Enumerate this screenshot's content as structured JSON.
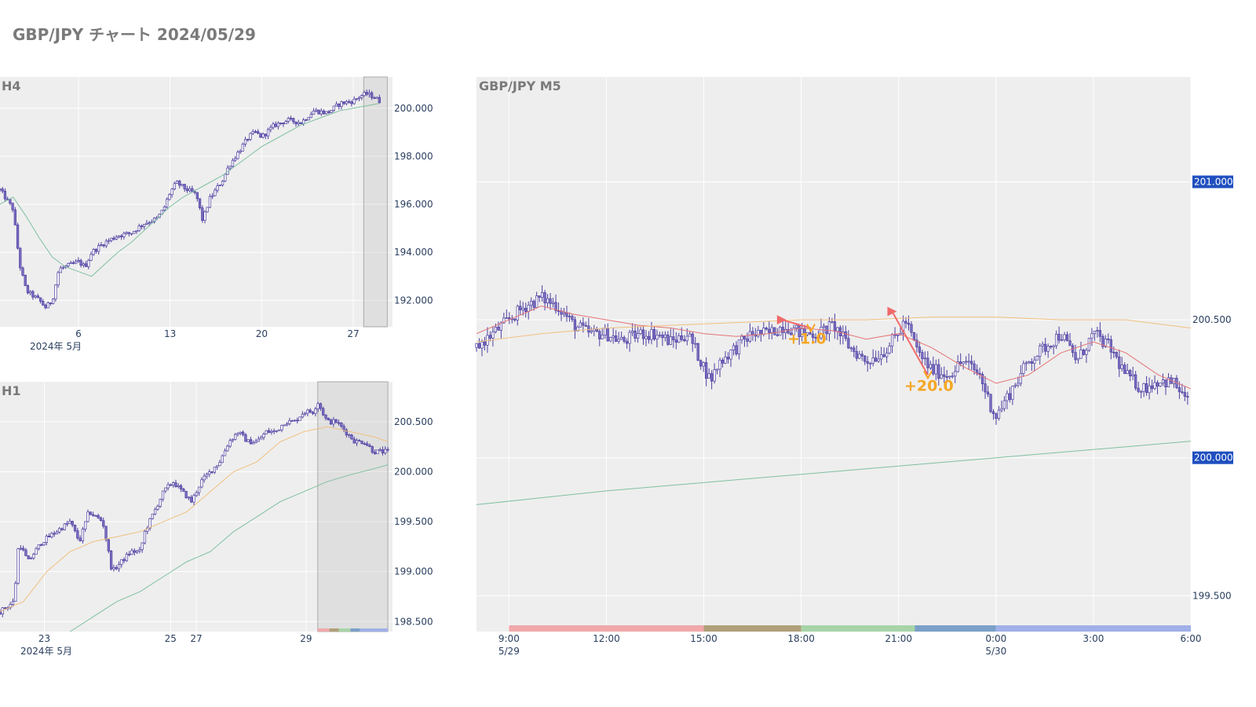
{
  "title": "GBP/JPY チャート 2024/05/29",
  "colors": {
    "plot_bg": "#eeeeee",
    "grid": "#ffffff",
    "candle": "#7b6fc2",
    "candle_dark": "#4d3fa0",
    "ma_short": "#e57373",
    "ma_mid": "#f0c080",
    "ma_long": "#7fc0a0",
    "badge": "#1f4fbf",
    "annotation": "#f5a623",
    "trade_line": "#f06a6a"
  },
  "chart_data": [
    {
      "id": "h4",
      "type": "candlestick",
      "title": "H4",
      "x_ticks": [
        "6",
        "13",
        "20",
        "27"
      ],
      "x_sublabel": "2024年 5月",
      "y_ticks": [
        "200.000",
        "198.000",
        "196.000",
        "194.000",
        "192.000"
      ],
      "ylim": [
        190.9,
        201.3
      ],
      "x_range_days": [
        0.0,
        30.0
      ],
      "x_tick_days": [
        6,
        13,
        20,
        27
      ],
      "series": [
        {
          "kind": "close_path",
          "points": [
            [
              0,
              196.6
            ],
            [
              1,
              195.8
            ],
            [
              1.5,
              193.5
            ],
            [
              2,
              192.4
            ],
            [
              3,
              192.0
            ],
            [
              3.5,
              191.7
            ],
            [
              4,
              192.0
            ],
            [
              4.5,
              193.3
            ],
            [
              5,
              193.4
            ],
            [
              6,
              193.6
            ],
            [
              6.5,
              193.4
            ],
            [
              7,
              194.0
            ],
            [
              8,
              194.4
            ],
            [
              9,
              194.7
            ],
            [
              10,
              194.8
            ],
            [
              11,
              195.2
            ],
            [
              12,
              195.4
            ],
            [
              12.5,
              195.8
            ],
            [
              13,
              196.5
            ],
            [
              13.5,
              196.9
            ],
            [
              14,
              196.7
            ],
            [
              15,
              196.4
            ],
            [
              15.5,
              195.3
            ],
            [
              16,
              196.2
            ],
            [
              16.5,
              196.6
            ],
            [
              17,
              197.0
            ],
            [
              17.5,
              197.6
            ],
            [
              18,
              198.0
            ],
            [
              19,
              198.8
            ],
            [
              19.5,
              199.0
            ],
            [
              20,
              198.8
            ],
            [
              21,
              199.3
            ],
            [
              22,
              199.5
            ],
            [
              23,
              199.4
            ],
            [
              24,
              199.9
            ],
            [
              25,
              199.8
            ],
            [
              26,
              200.2
            ],
            [
              27,
              200.3
            ],
            [
              27.5,
              200.5
            ],
            [
              28,
              200.6
            ],
            [
              28.5,
              200.5
            ],
            [
              29,
              200.3
            ]
          ]
        },
        {
          "kind": "ma",
          "color": "ma_long",
          "points": [
            [
              0,
              196.0
            ],
            [
              1,
              196.3
            ],
            [
              2,
              195.5
            ],
            [
              3,
              194.6
            ],
            [
              4,
              193.8
            ],
            [
              5,
              193.4
            ],
            [
              6,
              193.2
            ],
            [
              7,
              193.0
            ],
            [
              8,
              193.5
            ],
            [
              9,
              194.0
            ],
            [
              10,
              194.4
            ],
            [
              11,
              194.9
            ],
            [
              12,
              195.4
            ],
            [
              13,
              195.9
            ],
            [
              14,
              196.3
            ],
            [
              15,
              196.6
            ],
            [
              16,
              196.9
            ],
            [
              17,
              197.2
            ],
            [
              18,
              197.6
            ],
            [
              19,
              198.0
            ],
            [
              20,
              198.4
            ],
            [
              21,
              198.7
            ],
            [
              22,
              199.0
            ],
            [
              23,
              199.3
            ],
            [
              24,
              199.5
            ],
            [
              25,
              199.7
            ],
            [
              26,
              199.9
            ],
            [
              27,
              200.0
            ],
            [
              28,
              200.1
            ],
            [
              29,
              200.2
            ]
          ]
        }
      ],
      "highlight_days": [
        27.8,
        29.6
      ]
    },
    {
      "id": "h1",
      "type": "candlestick",
      "title": "H1",
      "x_ticks": [
        "23",
        "25",
        "27",
        "29"
      ],
      "x_sublabel": "2024年 5月",
      "y_ticks": [
        "200.500",
        "200.000",
        "199.500",
        "199.000",
        "198.500"
      ],
      "ylim": [
        198.4,
        200.9
      ],
      "x_range_hours": [
        0.0,
        168.0
      ],
      "x_tick_hours": [
        19,
        73,
        84,
        131
      ],
      "series": [
        {
          "kind": "close_path",
          "points": [
            [
              0,
              198.6
            ],
            [
              6,
              198.7
            ],
            [
              8,
              199.3
            ],
            [
              12,
              199.1
            ],
            [
              18,
              199.3
            ],
            [
              24,
              199.4
            ],
            [
              30,
              199.5
            ],
            [
              34,
              199.3
            ],
            [
              38,
              199.6
            ],
            [
              44,
              199.5
            ],
            [
              48,
              199.0
            ],
            [
              52,
              199.1
            ],
            [
              56,
              199.2
            ],
            [
              60,
              199.2
            ],
            [
              62,
              199.4
            ],
            [
              66,
              199.6
            ],
            [
              70,
              199.8
            ],
            [
              74,
              199.9
            ],
            [
              78,
              199.8
            ],
            [
              82,
              199.7
            ],
            [
              86,
              199.9
            ],
            [
              90,
              200.0
            ],
            [
              94,
              200.1
            ],
            [
              98,
              200.3
            ],
            [
              102,
              200.4
            ],
            [
              106,
              200.3
            ],
            [
              110,
              200.3
            ],
            [
              114,
              200.4
            ],
            [
              118,
              200.4
            ],
            [
              122,
              200.5
            ],
            [
              126,
              200.5
            ],
            [
              130,
              200.6
            ],
            [
              134,
              200.6
            ],
            [
              136,
              200.7
            ],
            [
              140,
              200.5
            ],
            [
              144,
              200.5
            ],
            [
              148,
              200.4
            ],
            [
              152,
              200.3
            ],
            [
              156,
              200.3
            ],
            [
              160,
              200.2
            ],
            [
              164,
              200.2
            ],
            [
              166,
              200.2
            ]
          ]
        },
        {
          "kind": "ma",
          "color": "ma_mid",
          "points": [
            [
              0,
              198.6
            ],
            [
              10,
              198.7
            ],
            [
              20,
              199.0
            ],
            [
              30,
              199.2
            ],
            [
              40,
              199.3
            ],
            [
              50,
              199.35
            ],
            [
              60,
              199.4
            ],
            [
              70,
              199.5
            ],
            [
              80,
              199.6
            ],
            [
              90,
              199.8
            ],
            [
              100,
              200.0
            ],
            [
              110,
              200.1
            ],
            [
              120,
              200.3
            ],
            [
              130,
              200.4
            ],
            [
              140,
              200.45
            ],
            [
              150,
              200.4
            ],
            [
              160,
              200.35
            ],
            [
              166,
              200.3
            ]
          ]
        },
        {
          "kind": "ma",
          "color": "ma_long",
          "points": [
            [
              30,
              198.4
            ],
            [
              40,
              198.55
            ],
            [
              50,
              198.7
            ],
            [
              60,
              198.8
            ],
            [
              70,
              198.95
            ],
            [
              80,
              199.1
            ],
            [
              90,
              199.2
            ],
            [
              100,
              199.4
            ],
            [
              110,
              199.55
            ],
            [
              120,
              199.7
            ],
            [
              130,
              199.8
            ],
            [
              140,
              199.9
            ],
            [
              150,
              199.97
            ],
            [
              160,
              200.03
            ],
            [
              166,
              200.07
            ]
          ]
        }
      ],
      "highlight_hours": [
        136,
        166
      ]
    },
    {
      "id": "m5",
      "type": "candlestick",
      "title": "GBP/JPY M5",
      "x_ticks": [
        "9:00",
        "12:00",
        "15:00",
        "18:00",
        "21:00",
        "0:00",
        "3:00",
        "6:00"
      ],
      "x_date_labels": [
        "5/29",
        "5/30"
      ],
      "y_ticks": [
        "201.000",
        "200.500",
        "200.000",
        "199.500"
      ],
      "y_badges": [
        "201.000",
        "200.000"
      ],
      "ylim": [
        199.37,
        201.38
      ],
      "x_range_hours": [
        8.0,
        30.0
      ],
      "series": [
        {
          "kind": "close_path",
          "points": [
            [
              8,
              200.4
            ],
            [
              8.5,
              200.45
            ],
            [
              9,
              200.5
            ],
            [
              9.5,
              200.55
            ],
            [
              10,
              200.58
            ],
            [
              10.5,
              200.55
            ],
            [
              11,
              200.48
            ],
            [
              11.5,
              200.45
            ],
            [
              12,
              200.45
            ],
            [
              12.5,
              200.42
            ],
            [
              13,
              200.45
            ],
            [
              13.5,
              200.45
            ],
            [
              14,
              200.42
            ],
            [
              14.5,
              200.45
            ],
            [
              15,
              200.33
            ],
            [
              15.2,
              200.28
            ],
            [
              15.5,
              200.35
            ],
            [
              16,
              200.4
            ],
            [
              16.5,
              200.45
            ],
            [
              17,
              200.45
            ],
            [
              17.5,
              200.48
            ],
            [
              18,
              200.45
            ],
            [
              18.5,
              200.45
            ],
            [
              19,
              200.48
            ],
            [
              19.5,
              200.4
            ],
            [
              20,
              200.35
            ],
            [
              20.5,
              200.38
            ],
            [
              21,
              200.45
            ],
            [
              21.2,
              200.5
            ],
            [
              21.6,
              200.38
            ],
            [
              22,
              200.32
            ],
            [
              22.5,
              200.3
            ],
            [
              23,
              200.35
            ],
            [
              23.5,
              200.3
            ],
            [
              23.8,
              200.2
            ],
            [
              24,
              200.15
            ],
            [
              24.5,
              200.25
            ],
            [
              25,
              200.35
            ],
            [
              25.5,
              200.4
            ],
            [
              26,
              200.45
            ],
            [
              26.5,
              200.35
            ],
            [
              27,
              200.45
            ],
            [
              27.5,
              200.4
            ],
            [
              28,
              200.3
            ],
            [
              28.5,
              200.25
            ],
            [
              29,
              200.28
            ],
            [
              29.5,
              200.27
            ],
            [
              29.9,
              200.2
            ]
          ]
        },
        {
          "kind": "ma",
          "color": "ma_short",
          "points": [
            [
              8,
              200.45
            ],
            [
              9,
              200.5
            ],
            [
              10,
              200.55
            ],
            [
              11,
              200.52
            ],
            [
              12,
              200.5
            ],
            [
              13,
              200.48
            ],
            [
              14,
              200.47
            ],
            [
              15,
              200.45
            ],
            [
              16,
              200.44
            ],
            [
              17,
              200.45
            ],
            [
              18,
              200.47
            ],
            [
              19,
              200.46
            ],
            [
              20,
              200.43
            ],
            [
              21,
              200.45
            ],
            [
              22,
              200.4
            ],
            [
              23,
              200.33
            ],
            [
              24,
              200.27
            ],
            [
              25,
              200.3
            ],
            [
              26,
              200.38
            ],
            [
              27,
              200.42
            ],
            [
              28,
              200.38
            ],
            [
              29,
              200.3
            ],
            [
              30,
              200.25
            ]
          ]
        },
        {
          "kind": "ma",
          "color": "ma_mid",
          "points": [
            [
              8,
              200.42
            ],
            [
              10,
              200.45
            ],
            [
              12,
              200.47
            ],
            [
              14,
              200.48
            ],
            [
              16,
              200.49
            ],
            [
              18,
              200.5
            ],
            [
              20,
              200.5
            ],
            [
              22,
              200.51
            ],
            [
              24,
              200.51
            ],
            [
              26,
              200.5
            ],
            [
              28,
              200.5
            ],
            [
              30,
              200.47
            ]
          ]
        },
        {
          "kind": "ma",
          "color": "ma_long",
          "points": [
            [
              8,
              199.83
            ],
            [
              12,
              199.88
            ],
            [
              16,
              199.92
            ],
            [
              20,
              199.96
            ],
            [
              24,
              200.0
            ],
            [
              28,
              200.04
            ],
            [
              30,
              200.06
            ]
          ]
        }
      ],
      "session_bands": [
        {
          "from": 9.0,
          "to": 15.0,
          "color": "#f0a8ab"
        },
        {
          "from": 15.0,
          "to": 18.0,
          "color": "#b0a07a"
        },
        {
          "from": 18.0,
          "to": 21.5,
          "color": "#a8d4a8"
        },
        {
          "from": 21.5,
          "to": 24.0,
          "color": "#7aa0c8"
        },
        {
          "from": 24.0,
          "to": 30.0,
          "color": "#a0b0e8"
        }
      ],
      "trades": [
        {
          "entry_hour": 17.4,
          "entry_price": 200.5,
          "exit_hour": 18.3,
          "exit_price": 200.47,
          "label": "+1.0"
        },
        {
          "entry_hour": 20.8,
          "entry_price": 200.53,
          "exit_hour": 21.9,
          "exit_price": 200.3,
          "label": "+20.0"
        }
      ]
    }
  ]
}
